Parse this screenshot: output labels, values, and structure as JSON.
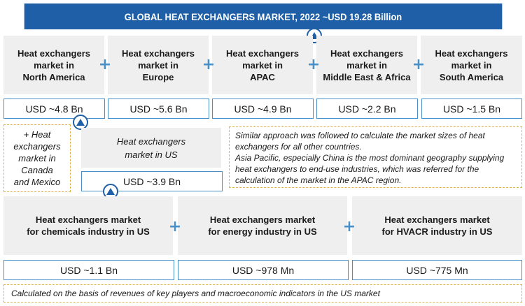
{
  "title": "GLOBAL HEAT EXCHANGERS MARKET, 2022 ~USD 19.28 Billion",
  "regions": [
    {
      "label_lines": [
        "Heat exchangers",
        "market in",
        "North America"
      ],
      "value": "USD ~4.8 Bn"
    },
    {
      "label_lines": [
        "Heat exchangers",
        "market in",
        "Europe"
      ],
      "value": "USD ~5.6 Bn"
    },
    {
      "label_lines": [
        "Heat exchangers",
        "market in",
        "APAC"
      ],
      "value": "USD ~4.9 Bn"
    },
    {
      "label_lines": [
        "Heat exchangers",
        "market in",
        "Middle East & Africa"
      ],
      "value": "USD ~2.2 Bn"
    },
    {
      "label_lines": [
        "Heat exchangers",
        "market in",
        "South America"
      ],
      "value": "USD ~1.5 Bn"
    }
  ],
  "canada_mexico_lines": [
    "+ Heat",
    "exchangers",
    "market in",
    "Canada",
    "and Mexico"
  ],
  "us": {
    "label_lines": [
      "Heat exchangers",
      "market in US"
    ],
    "value": "USD ~3.9 Bn"
  },
  "note_lines": [
    "Similar approach was followed to calculate the market sizes of heat",
    "exchangers for all other countries.",
    "Asia Pacific, especially China is the most dominant geography supplying",
    "heat exchangers to end-use industries, which was referred for the",
    "calculation of the market in the APAC region."
  ],
  "industries": [
    {
      "label_lines": [
        "Heat exchangers market",
        "for chemicals industry in US"
      ],
      "value": "USD ~1.1 Bn"
    },
    {
      "label_lines": [
        "Heat exchangers market",
        "for energy industry in US"
      ],
      "value": "USD ~978 Mn"
    },
    {
      "label_lines": [
        "Heat exchangers market",
        "for HVACR industry in US"
      ],
      "value": "USD ~775 Mn"
    }
  ],
  "footer": "Calculated on the basis of revenues of key players and macroeconomic indicators in the US market",
  "icons": {
    "plus": "plus-icon",
    "up_arrow": "up-triangle-icon"
  },
  "colors": {
    "title_bg": "#1f5fa8",
    "accent": "#4a90c8",
    "box_grey": "#efefef",
    "dashed": "#e0b24a"
  }
}
